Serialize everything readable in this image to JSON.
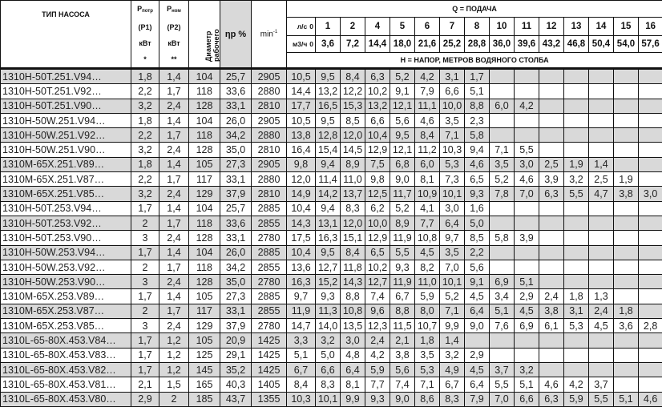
{
  "header": {
    "pump_type": "ТИП НАСОСА",
    "p1": {
      "symbol": "P",
      "sub": "потр",
      "code": "(P1)",
      "unit": "кВт",
      "mark": "*"
    },
    "p2": {
      "symbol": "P",
      "sub": "ном",
      "code": "(P2)",
      "unit": "кВт",
      "mark": "**"
    },
    "diameter": "Диаметр рабочего колеса, мм",
    "efficiency": "ηр %",
    "speed": "min",
    "speed_exp": "-1",
    "flow_title": "Q = ПОДАЧА",
    "flow_ls_label": "л/с",
    "flow_ls": [
      "0",
      "1",
      "2",
      "4",
      "5",
      "6",
      "7",
      "8",
      "10",
      "11",
      "12",
      "13",
      "14",
      "15",
      "16"
    ],
    "flow_m3h_label": "м3/ч",
    "flow_m3h": [
      "0",
      "3,6",
      "7,2",
      "14,4",
      "18,0",
      "21,6",
      "25,2",
      "28,8",
      "36,0",
      "39,6",
      "43,2",
      "46,8",
      "50,4",
      "54,0",
      "57,6"
    ],
    "head_title": "Н = НАПОР, МЕТРОВ ВОДЯНОГО СТОЛБА"
  },
  "colors": {
    "alt_row": "#d9d9d9",
    "efficiency_header": "#d9d9d9",
    "border": "#111111"
  },
  "rows": [
    {
      "type": "1310H-50T.251.V94…",
      "p1": "1,8",
      "p2": "1,4",
      "d": "104",
      "eta": "25,7",
      "rpm": "2905",
      "h": [
        "10,5",
        "9,5",
        "8,4",
        "6,3",
        "5,2",
        "4,2",
        "3,1",
        "1,7"
      ]
    },
    {
      "type": "1310H-50T.251.V92…",
      "p1": "2,2",
      "p2": "1,7",
      "d": "118",
      "eta": "33,6",
      "rpm": "2880",
      "h": [
        "14,4",
        "13,2",
        "12,2",
        "10,2",
        "9,1",
        "7,9",
        "6,6",
        "5,1"
      ]
    },
    {
      "type": "1310H-50T.251.V90…",
      "p1": "3,2",
      "p2": "2,4",
      "d": "128",
      "eta": "33,1",
      "rpm": "2810",
      "h": [
        "17,7",
        "16,5",
        "15,3",
        "13,2",
        "12,1",
        "11,1",
        "10,0",
        "8,8",
        "6,0",
        "4,2"
      ]
    },
    {
      "type": "1310H-50W.251.V94…",
      "p1": "1,8",
      "p2": "1,4",
      "d": "104",
      "eta": "26,0",
      "rpm": "2905",
      "h": [
        "10,5",
        "9,5",
        "8,5",
        "6,6",
        "5,6",
        "4,6",
        "3,5",
        "2,3"
      ]
    },
    {
      "type": "1310H-50W.251.V92…",
      "p1": "2,2",
      "p2": "1,7",
      "d": "118",
      "eta": "34,2",
      "rpm": "2880",
      "h": [
        "13,8",
        "12,8",
        "12,0",
        "10,4",
        "9,5",
        "8,4",
        "7,1",
        "5,8"
      ]
    },
    {
      "type": "1310H-50W.251.V90…",
      "p1": "3,2",
      "p2": "2,4",
      "d": "128",
      "eta": "35,0",
      "rpm": "2810",
      "h": [
        "16,4",
        "15,4",
        "14,5",
        "12,9",
        "12,1",
        "11,2",
        "10,3",
        "9,4",
        "7,1",
        "5,5"
      ]
    },
    {
      "type": "1310M-65X.251.V89…",
      "p1": "1,8",
      "p2": "1,4",
      "d": "105",
      "eta": "27,3",
      "rpm": "2905",
      "h": [
        "9,8",
        "9,4",
        "8,9",
        "7,5",
        "6,8",
        "6,0",
        "5,3",
        "4,6",
        "3,5",
        "3,0",
        "2,5",
        "1,9",
        "1,4"
      ]
    },
    {
      "type": "1310M-65X.251.V87…",
      "p1": "2,2",
      "p2": "1,7",
      "d": "117",
      "eta": "33,1",
      "rpm": "2880",
      "h": [
        "12,0",
        "11,4",
        "11,0",
        "9,8",
        "9,0",
        "8,1",
        "7,3",
        "6,5",
        "5,2",
        "4,6",
        "3,9",
        "3,2",
        "2,5",
        "1,9"
      ]
    },
    {
      "type": "1310M-65X.251.V85…",
      "p1": "3,2",
      "p2": "2,4",
      "d": "129",
      "eta": "37,9",
      "rpm": "2810",
      "h": [
        "14,9",
        "14,2",
        "13,7",
        "12,5",
        "11,7",
        "10,9",
        "10,1",
        "9,3",
        "7,8",
        "7,0",
        "6,3",
        "5,5",
        "4,7",
        "3,8",
        "3,0"
      ]
    },
    {
      "type": "1310H-50T.253.V94…",
      "p1": "1,7",
      "p2": "1,4",
      "d": "104",
      "eta": "25,7",
      "rpm": "2885",
      "h": [
        "10,4",
        "9,4",
        "8,3",
        "6,2",
        "5,2",
        "4,1",
        "3,0",
        "1,6"
      ]
    },
    {
      "type": "1310H-50T.253.V92…",
      "p1": "2",
      "p2": "1,7",
      "d": "118",
      "eta": "33,6",
      "rpm": "2855",
      "h": [
        "14,3",
        "13,1",
        "12,0",
        "10,0",
        "8,9",
        "7,7",
        "6,4",
        "5,0"
      ]
    },
    {
      "type": "1310H-50T.253.V90…",
      "p1": "3",
      "p2": "2,4",
      "d": "128",
      "eta": "33,1",
      "rpm": "2780",
      "h": [
        "17,5",
        "16,3",
        "15,1",
        "12,9",
        "11,9",
        "10,8",
        "9,7",
        "8,5",
        "5,8",
        "3,9"
      ]
    },
    {
      "type": "1310H-50W.253.V94…",
      "p1": "1,7",
      "p2": "1,4",
      "d": "104",
      "eta": "26,0",
      "rpm": "2885",
      "h": [
        "10,4",
        "9,5",
        "8,4",
        "6,5",
        "5,5",
        "4,5",
        "3,5",
        "2,2"
      ]
    },
    {
      "type": "1310H-50W.253.V92…",
      "p1": "2",
      "p2": "1,7",
      "d": "118",
      "eta": "34,2",
      "rpm": "2855",
      "h": [
        "13,6",
        "12,7",
        "11,8",
        "10,2",
        "9,3",
        "8,2",
        "7,0",
        "5,6"
      ]
    },
    {
      "type": "1310H-50W.253.V90…",
      "p1": "3",
      "p2": "2,4",
      "d": "128",
      "eta": "35,0",
      "rpm": "2780",
      "h": [
        "16,3",
        "15,2",
        "14,3",
        "12,7",
        "11,9",
        "11,0",
        "10,1",
        "9,1",
        "6,9",
        "5,1"
      ]
    },
    {
      "type": "1310M-65X.253.V89…",
      "p1": "1,7",
      "p2": "1,4",
      "d": "105",
      "eta": "27,3",
      "rpm": "2885",
      "h": [
        "9,7",
        "9,3",
        "8,8",
        "7,4",
        "6,7",
        "5,9",
        "5,2",
        "4,5",
        "3,4",
        "2,9",
        "2,4",
        "1,8",
        "1,3"
      ]
    },
    {
      "type": "1310M-65X.253.V87…",
      "p1": "2",
      "p2": "1,7",
      "d": "117",
      "eta": "33,1",
      "rpm": "2855",
      "h": [
        "11,9",
        "11,3",
        "10,8",
        "9,6",
        "8,8",
        "8,0",
        "7,1",
        "6,4",
        "5,1",
        "4,5",
        "3,8",
        "3,1",
        "2,4",
        "1,8"
      ]
    },
    {
      "type": "1310M-65X.253.V85…",
      "p1": "3",
      "p2": "2,4",
      "d": "129",
      "eta": "37,9",
      "rpm": "2780",
      "h": [
        "14,7",
        "14,0",
        "13,5",
        "12,3",
        "11,5",
        "10,7",
        "9,9",
        "9,0",
        "7,6",
        "6,9",
        "6,1",
        "5,3",
        "4,5",
        "3,6",
        "2,8"
      ]
    },
    {
      "type": "1310L-65-80X.453.V84…",
      "p1": "1,7",
      "p2": "1,2",
      "d": "105",
      "eta": "20,9",
      "rpm": "1425",
      "h": [
        "3,3",
        "3,2",
        "3,0",
        "2,4",
        "2,1",
        "1,8",
        "1,4"
      ]
    },
    {
      "type": "1310L-65-80X.453.V83…",
      "p1": "1,7",
      "p2": "1,2",
      "d": "125",
      "eta": "29,1",
      "rpm": "1425",
      "h": [
        "5,1",
        "5,0",
        "4,8",
        "4,2",
        "3,8",
        "3,5",
        "3,2",
        "2,9"
      ]
    },
    {
      "type": "1310L-65-80X.453.V82…",
      "p1": "1,7",
      "p2": "1,2",
      "d": "145",
      "eta": "35,2",
      "rpm": "1425",
      "h": [
        "6,7",
        "6,6",
        "6,4",
        "5,9",
        "5,6",
        "5,3",
        "4,9",
        "4,5",
        "3,7",
        "3,2"
      ]
    },
    {
      "type": "1310L-65-80X.453.V81…",
      "p1": "2,1",
      "p2": "1,5",
      "d": "165",
      "eta": "40,3",
      "rpm": "1405",
      "h": [
        "8,4",
        "8,3",
        "8,1",
        "7,7",
        "7,4",
        "7,1",
        "6,7",
        "6,4",
        "5,5",
        "5,1",
        "4,6",
        "4,2",
        "3,7"
      ]
    },
    {
      "type": "1310L-65-80X.453.V80…",
      "p1": "2,9",
      "p2": "2",
      "d": "185",
      "eta": "43,7",
      "rpm": "1355",
      "h": [
        "10,3",
        "10,1",
        "9,9",
        "9,3",
        "9,0",
        "8,6",
        "8,3",
        "7,9",
        "7,0",
        "6,6",
        "6,3",
        "5,9",
        "5,5",
        "5,1",
        "4,6"
      ]
    }
  ]
}
